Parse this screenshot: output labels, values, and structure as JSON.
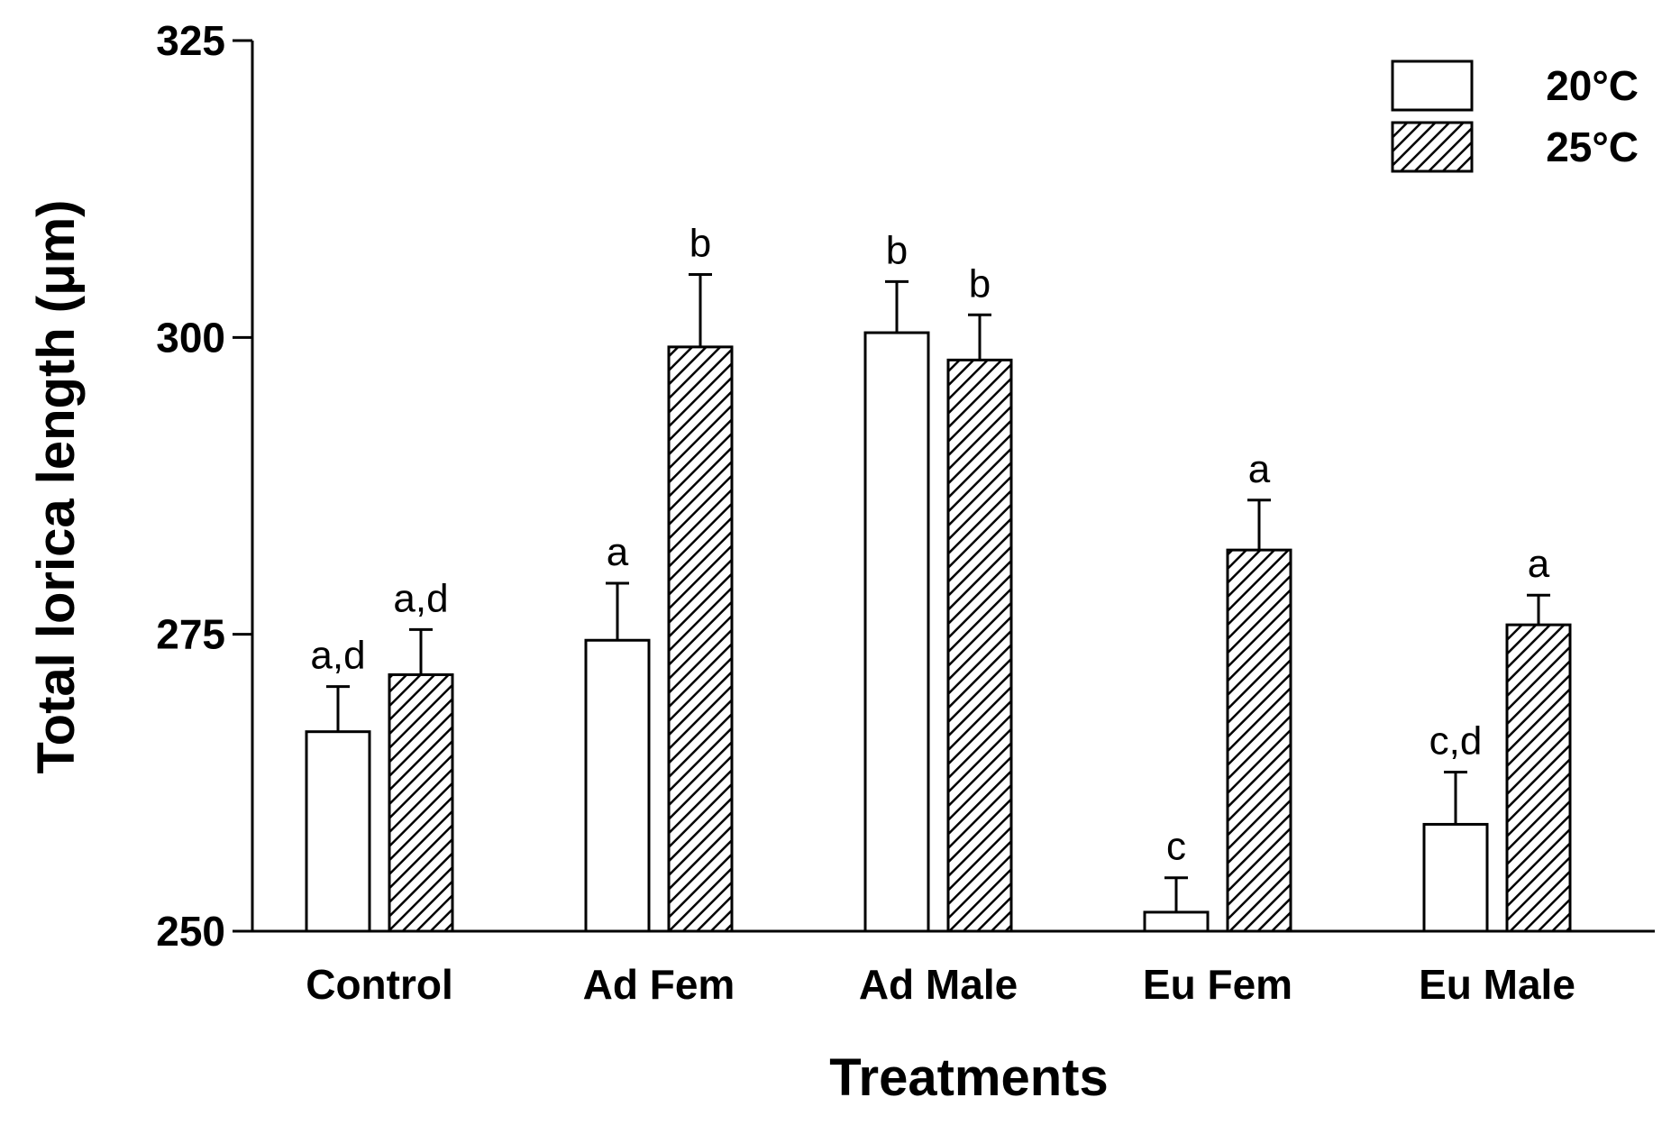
{
  "chart_data": {
    "type": "bar",
    "title": "",
    "xlabel": "Treatments",
    "ylabel": "Total lorica length (μm)",
    "ylim": [
      250,
      325
    ],
    "yticks": [
      "250",
      "275",
      "300",
      "325"
    ],
    "categories": [
      "Control",
      "Ad Fem",
      "Ad Male",
      "Eu Fem",
      "Eu Male"
    ],
    "legend_position": "top-right",
    "grid": false,
    "series": [
      {
        "name": "20°C",
        "pattern": "open",
        "values": [
          266.8,
          274.5,
          300.4,
          251.6,
          259.0
        ],
        "errors": [
          3.8,
          4.8,
          4.3,
          2.9,
          4.4
        ],
        "labels": [
          "a,d",
          "a",
          "b",
          "c",
          "c,d"
        ]
      },
      {
        "name": "25°C",
        "pattern": "hatched",
        "values": [
          271.6,
          299.2,
          298.1,
          282.1,
          275.8
        ],
        "errors": [
          3.8,
          6.1,
          3.8,
          4.2,
          2.5
        ],
        "labels": [
          "a,d",
          "b",
          "b",
          "a",
          "a"
        ]
      }
    ],
    "colors": {
      "stroke": "#000000",
      "fill_open": "#ffffff",
      "hatch": "#000000"
    }
  }
}
